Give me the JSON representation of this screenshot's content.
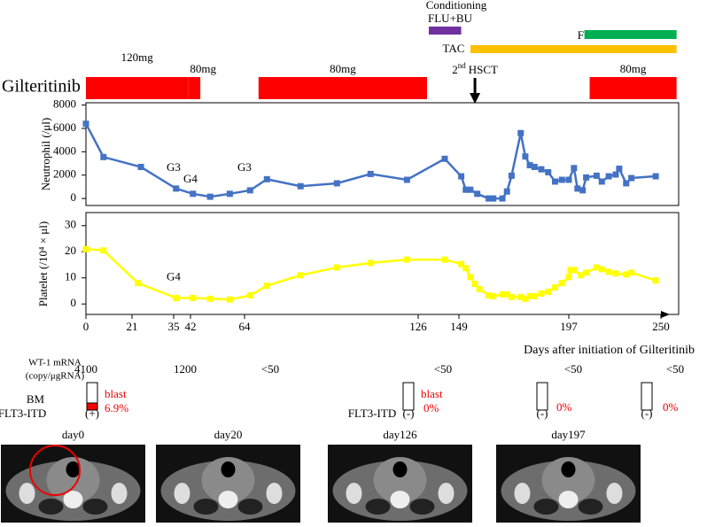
{
  "chart_data": [
    {
      "type": "line",
      "y_label": "Neutrophil (/μl)",
      "x": [
        0,
        8,
        24,
        36,
        43,
        50,
        58,
        66,
        72,
        84,
        97,
        109,
        122,
        141,
        150,
        152,
        154,
        157,
        162,
        164,
        168,
        170,
        172,
        176,
        178,
        180,
        182,
        185,
        188,
        191,
        194,
        197,
        200,
        202,
        205,
        207,
        213,
        216,
        220,
        224,
        226,
        230,
        233,
        247
      ],
      "series": [
        {
          "color": "#4472c4",
          "values": [
            6400,
            3550,
            2700,
            850,
            400,
            150,
            400,
            700,
            1650,
            1050,
            1300,
            2100,
            1600,
            3400,
            1900,
            750,
            750,
            400,
            0,
            0,
            0,
            600,
            1950,
            5600,
            3600,
            2850,
            2700,
            2500,
            2250,
            1450,
            1600,
            1600,
            2600,
            850,
            700,
            1800,
            1950,
            1450,
            1900,
            2050,
            2550,
            1300,
            1750,
            1900
          ]
        }
      ],
      "xlim": [
        0,
        250
      ],
      "xticks": [
        0,
        21,
        35,
        42,
        64,
        126,
        149,
        197,
        250
      ],
      "ylim": [
        -600,
        8200
      ],
      "yticks": [
        0,
        2000,
        4000,
        6000,
        8000
      ],
      "annotations": [
        {
          "text": "G3",
          "x": 35,
          "y": 2600
        },
        {
          "text": "G4",
          "x": 42,
          "y": 1600
        },
        {
          "text": "G3",
          "x": 64,
          "y": 2600
        }
      ]
    },
    {
      "type": "line",
      "y_label": "Platelet (/10⁴ × μl)",
      "x_label": "Days after initiation of  Gilteritinib",
      "x": [
        0,
        8,
        23,
        36,
        43,
        50,
        58,
        66,
        72,
        84,
        97,
        109,
        122,
        141,
        150,
        152,
        154,
        156,
        158,
        162,
        164,
        168,
        170,
        172,
        176,
        178,
        180,
        182,
        185,
        188,
        191,
        194,
        197,
        198,
        200,
        204,
        207,
        213,
        216,
        220,
        224,
        230,
        233,
        247
      ],
      "series": [
        {
          "color": "#ffff00",
          "values": [
            21,
            20.5,
            8,
            2.3,
            2.3,
            2,
            1.7,
            3.3,
            7,
            11,
            14,
            15.7,
            17,
            17,
            15.3,
            13.7,
            10.3,
            7.7,
            5.7,
            3.3,
            3,
            3.7,
            3.7,
            2.7,
            2.7,
            2,
            3,
            3,
            4,
            4.7,
            6.3,
            8,
            10.3,
            13,
            13,
            11,
            12,
            14,
            13.3,
            12.3,
            11.7,
            11.3,
            12,
            9
          ]
        }
      ],
      "xlim": [
        0,
        250
      ],
      "xticks": [
        0,
        21,
        35,
        42,
        64,
        126,
        149,
        197,
        250
      ],
      "ylim": [
        -4,
        35
      ],
      "yticks": [
        0,
        10,
        20,
        30
      ],
      "annotations": [
        {
          "text": "G4",
          "x": 35,
          "y": 10
        }
      ]
    }
  ],
  "treatments": {
    "gilteritinib": {
      "label": "Gilteritinib",
      "color": "#ff0000",
      "periods": [
        {
          "dose": "120mg",
          "start": 0,
          "end": 41
        },
        {
          "dose": "80mg",
          "start": 41,
          "end": 46
        },
        {
          "dose": "80mg",
          "start": 69,
          "end": 131
        },
        {
          "dose": "80mg",
          "start": 209,
          "end": 259
        }
      ]
    },
    "conditioning": {
      "label": "Conditioning",
      "regimen": "FLU+BU",
      "start": 132,
      "end": 150,
      "color": "#7030a0"
    },
    "tac": {
      "label": "TAC",
      "start": 154,
      "end": 259,
      "color": "#ffc000"
    },
    "frcz": {
      "label": "FRCZ",
      "start": 206,
      "end": 259,
      "color": "#00b050"
    },
    "hsct": {
      "ordinal": "2",
      "suffix": "nd",
      "label": "HSCT",
      "day": 156
    }
  },
  "lab": {
    "wt1_label": [
      "WT-1 mRNA",
      "(copy/μgRNA)"
    ],
    "wt1_values": [
      4100,
      1200,
      "<50",
      "<50",
      "<50",
      "<50"
    ],
    "bm_label": "BM",
    "blast_label": "blast",
    "blast": [
      "6.9%",
      "0%",
      "0%",
      "0%"
    ],
    "flt3_label": "FLT3-ITD",
    "flt3": [
      "(+)",
      "(-)",
      "(-)",
      "(-)"
    ]
  },
  "ct_images": [
    "day0",
    "day20",
    "day126",
    "day197"
  ]
}
